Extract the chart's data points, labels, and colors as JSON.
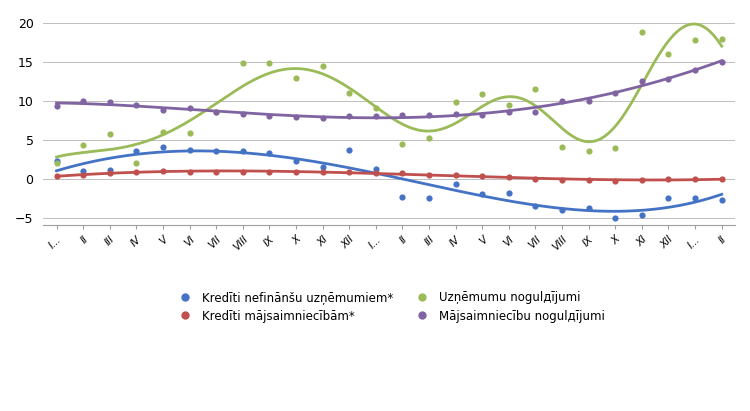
{
  "x_labels": [
    "I...",
    "II",
    "III",
    "IV",
    "V",
    "VI",
    "VII",
    "VIII",
    "IX",
    "X",
    "XI",
    "XII",
    "I...",
    "II",
    "III",
    "IV",
    "V",
    "VI",
    "VII",
    "VIII",
    "IX",
    "X",
    "XI",
    "XII",
    "I...",
    "II"
  ],
  "ylim": [
    -6,
    21
  ],
  "yticks": [
    -5,
    0,
    5,
    10,
    15,
    20
  ],
  "blue_dots": [
    2.2,
    1.0,
    1.1,
    3.5,
    4.0,
    3.7,
    3.5,
    3.5,
    3.3,
    2.2,
    1.5,
    3.7,
    1.2,
    -2.3,
    -2.5,
    -0.7,
    -2.0,
    -1.8,
    -3.5,
    -4.0,
    -3.8,
    -5.0,
    -4.7,
    -2.5,
    -2.5,
    -2.7
  ],
  "red_dots": [
    0.3,
    0.5,
    0.7,
    0.9,
    1.0,
    0.9,
    0.9,
    0.9,
    0.9,
    0.8,
    0.8,
    0.8,
    0.7,
    0.7,
    0.5,
    0.5,
    0.3,
    0.2,
    0.0,
    -0.2,
    -0.2,
    -0.3,
    -0.2,
    -0.1,
    0.0,
    -0.1
  ],
  "green_dots": [
    2.0,
    4.3,
    5.7,
    2.0,
    6.0,
    5.8,
    8.5,
    14.9,
    14.8,
    12.9,
    14.5,
    11.0,
    9.0,
    4.4,
    5.2,
    9.8,
    10.8,
    9.5,
    11.5,
    4.0,
    3.6,
    3.9,
    18.8,
    16.0,
    17.8,
    17.9
  ],
  "purple_dots": [
    9.3,
    10.0,
    9.8,
    9.5,
    8.8,
    9.0,
    8.5,
    8.3,
    8.0,
    7.9,
    7.8,
    8.0,
    8.0,
    8.2,
    8.2,
    8.3,
    8.2,
    8.5,
    8.5,
    10.0,
    10.0,
    11.0,
    12.5,
    12.8,
    14.0,
    15.0
  ],
  "blue_color": "#4472c4",
  "red_color": "#c0504d",
  "green_color": "#9bbb59",
  "purple_color": "#8064a2",
  "legend_labels": [
    "Kredīti nefinānšu uzņēmumiem*",
    "Kredīti mājsaimniecībām*",
    "Uzņēmumu nogulдījumi",
    "Mājsaimniecību nogulдījumi"
  ],
  "background_color": "#ffffff",
  "grid_color": "#bebebe"
}
